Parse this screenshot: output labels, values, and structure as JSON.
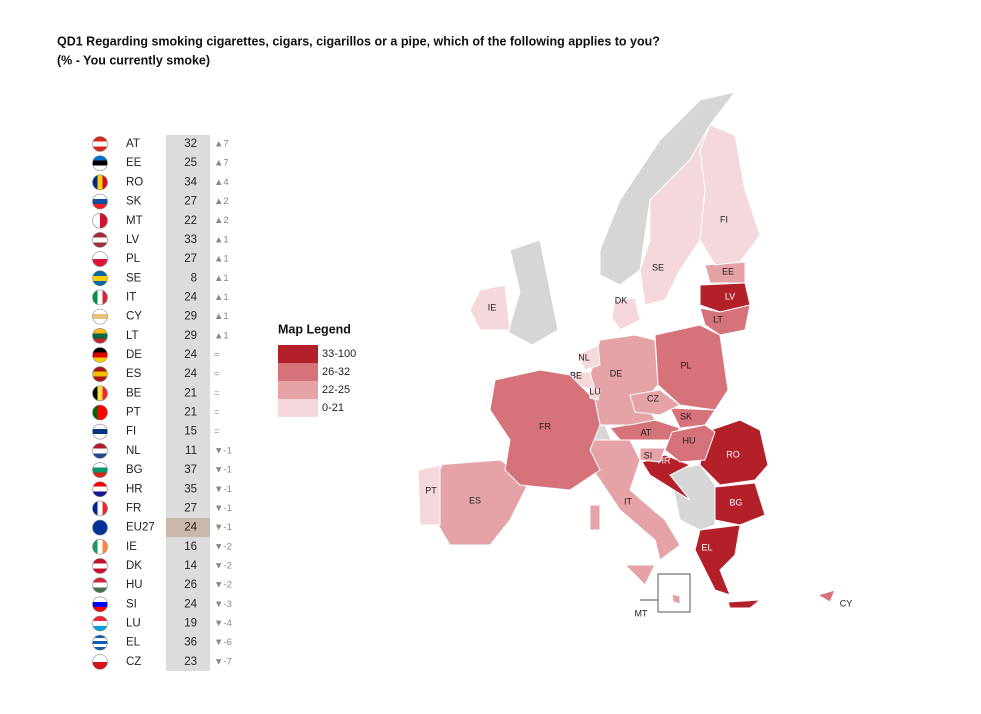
{
  "header": {
    "title": "QD1 Regarding smoking cigarettes, cigars, cigarillos or a pipe, which of the following applies to you?",
    "subtitle": "(% - You currently smoke)"
  },
  "table": {
    "rows": [
      {
        "code": "AT",
        "value": 32,
        "change": "▲7"
      },
      {
        "code": "EE",
        "value": 25,
        "change": "▲7"
      },
      {
        "code": "RO",
        "value": 34,
        "change": "▲4"
      },
      {
        "code": "SK",
        "value": 27,
        "change": "▲2"
      },
      {
        "code": "MT",
        "value": 22,
        "change": "▲2"
      },
      {
        "code": "LV",
        "value": 33,
        "change": "▲1"
      },
      {
        "code": "PL",
        "value": 27,
        "change": "▲1"
      },
      {
        "code": "SE",
        "value": 8,
        "change": "▲1"
      },
      {
        "code": "IT",
        "value": 24,
        "change": "▲1"
      },
      {
        "code": "CY",
        "value": 29,
        "change": "▲1"
      },
      {
        "code": "LT",
        "value": 29,
        "change": "▲1"
      },
      {
        "code": "DE",
        "value": 24,
        "change": "="
      },
      {
        "code": "ES",
        "value": 24,
        "change": "="
      },
      {
        "code": "BE",
        "value": 21,
        "change": "="
      },
      {
        "code": "PT",
        "value": 21,
        "change": "="
      },
      {
        "code": "FI",
        "value": 15,
        "change": "="
      },
      {
        "code": "NL",
        "value": 11,
        "change": "▼-1"
      },
      {
        "code": "BG",
        "value": 37,
        "change": "▼-1"
      },
      {
        "code": "HR",
        "value": 35,
        "change": "▼-1"
      },
      {
        "code": "FR",
        "value": 27,
        "change": "▼-1"
      },
      {
        "code": "EU27",
        "value": 24,
        "change": "▼-1"
      },
      {
        "code": "IE",
        "value": 16,
        "change": "▼-2"
      },
      {
        "code": "DK",
        "value": 14,
        "change": "▼-2"
      },
      {
        "code": "HU",
        "value": 26,
        "change": "▼-2"
      },
      {
        "code": "SI",
        "value": 24,
        "change": "▼-3"
      },
      {
        "code": "LU",
        "value": 19,
        "change": "▼-4"
      },
      {
        "code": "EL",
        "value": 36,
        "change": "▼-6"
      },
      {
        "code": "CZ",
        "value": 23,
        "change": "▼-7"
      }
    ]
  },
  "legend": {
    "title": "Map Legend",
    "items": [
      {
        "label": "33-100",
        "color": "#b3202a"
      },
      {
        "label": "26-32",
        "color": "#d5727a"
      },
      {
        "label": "22-25",
        "color": "#e6a3a7"
      },
      {
        "label": "0-21",
        "color": "#f5d8db"
      }
    ]
  }
}
